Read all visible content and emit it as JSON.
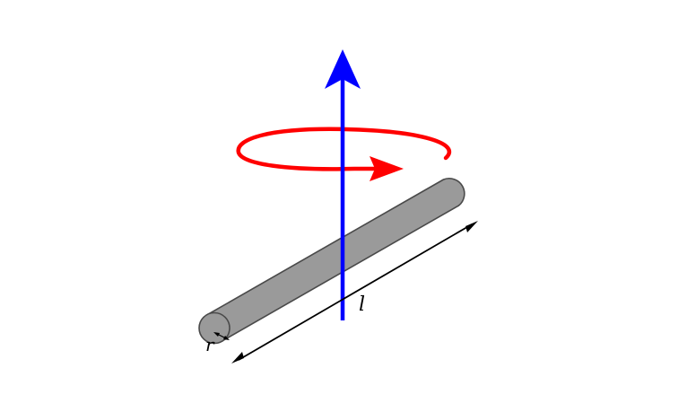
{
  "diagram": {
    "labels": {
      "length": "l",
      "radius": "r"
    },
    "colors": {
      "background": "#ffffff",
      "rod_fill": "#9a9a9a",
      "rod_stroke": "#4a4a4a",
      "axis": "#0000ff",
      "rotation": "#ff0000",
      "dimension": "#000000"
    },
    "components": {
      "rod": "cylinder",
      "axis": "rotation-axis-arrow",
      "rotation": "rotation-direction-arrow",
      "length_dimension": "double-headed-arrow",
      "radius_dimension": "double-headed-arrow"
    }
  }
}
